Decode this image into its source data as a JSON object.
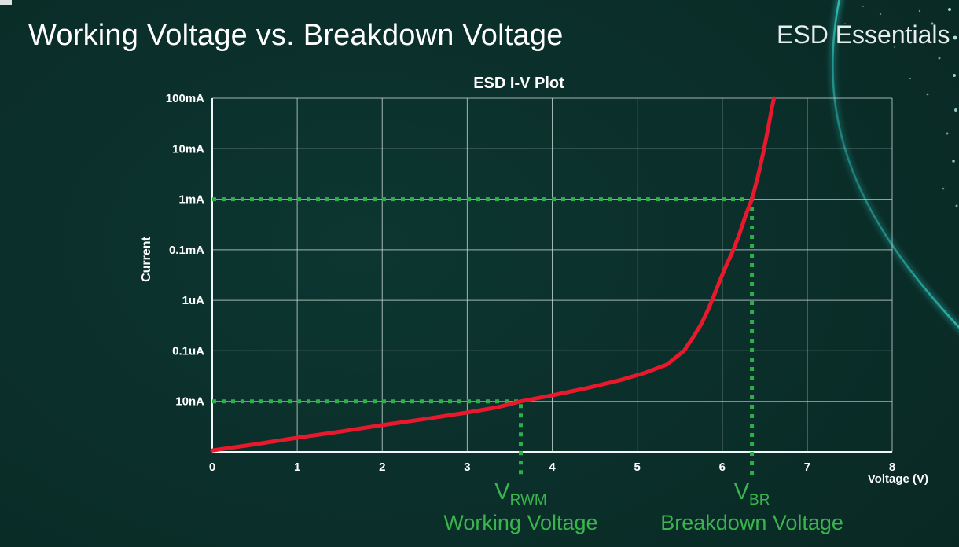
{
  "slide": {
    "title": "Working Voltage vs. Breakdown Voltage",
    "brand": "ESD Essentials"
  },
  "chart_data": {
    "type": "line",
    "title": "ESD I-V Plot",
    "xlabel": "Voltage (V)",
    "ylabel": "Current",
    "xlim": [
      0,
      8
    ],
    "x_ticks": [
      0,
      1,
      2,
      3,
      4,
      5,
      6,
      7,
      8
    ],
    "y_scale": "log",
    "y_tick_labels": [
      "100mA",
      "10mA",
      "1mA",
      "0.1mA",
      "1uA",
      "0.1uA",
      "10nA"
    ],
    "grid": true,
    "legend": "none",
    "colors": {
      "curve": "#e8192c",
      "annotation": "#2fae4a",
      "grid": "#c9d6d3"
    },
    "series": [
      {
        "name": "ESD I-V curve",
        "color": "#e8192c",
        "points": [
          [
            0,
            6.97
          ],
          [
            0.5,
            6.85
          ],
          [
            1,
            6.72
          ],
          [
            1.5,
            6.6
          ],
          [
            2,
            6.47
          ],
          [
            2.5,
            6.35
          ],
          [
            3,
            6.22
          ],
          [
            3.35,
            6.12
          ],
          [
            3.63,
            6.0
          ],
          [
            4,
            5.88
          ],
          [
            4.4,
            5.74
          ],
          [
            4.8,
            5.58
          ],
          [
            5.1,
            5.43
          ],
          [
            5.35,
            5.27
          ],
          [
            5.55,
            5.0
          ],
          [
            5.65,
            4.75
          ],
          [
            5.75,
            4.48
          ],
          [
            5.83,
            4.2
          ],
          [
            5.9,
            3.92
          ],
          [
            5.97,
            3.62
          ],
          [
            6.05,
            3.3
          ],
          [
            6.12,
            3.05
          ],
          [
            6.2,
            2.7
          ],
          [
            6.28,
            2.3
          ],
          [
            6.35,
            2.0
          ],
          [
            6.42,
            1.55
          ],
          [
            6.48,
            1.1
          ],
          [
            6.54,
            0.6
          ],
          [
            6.59,
            0.15
          ],
          [
            6.61,
            0.0
          ]
        ]
      }
    ],
    "annotations": [
      {
        "symbol": "V",
        "symbol_sub": "RWM",
        "caption": "Working Voltage",
        "x_volts": 3.63,
        "y_row": 6,
        "y_value": "10nA"
      },
      {
        "symbol": "V",
        "symbol_sub": "BR",
        "caption": "Breakdown Voltage",
        "x_volts": 6.35,
        "y_row": 2,
        "y_value": "1mA"
      }
    ]
  }
}
